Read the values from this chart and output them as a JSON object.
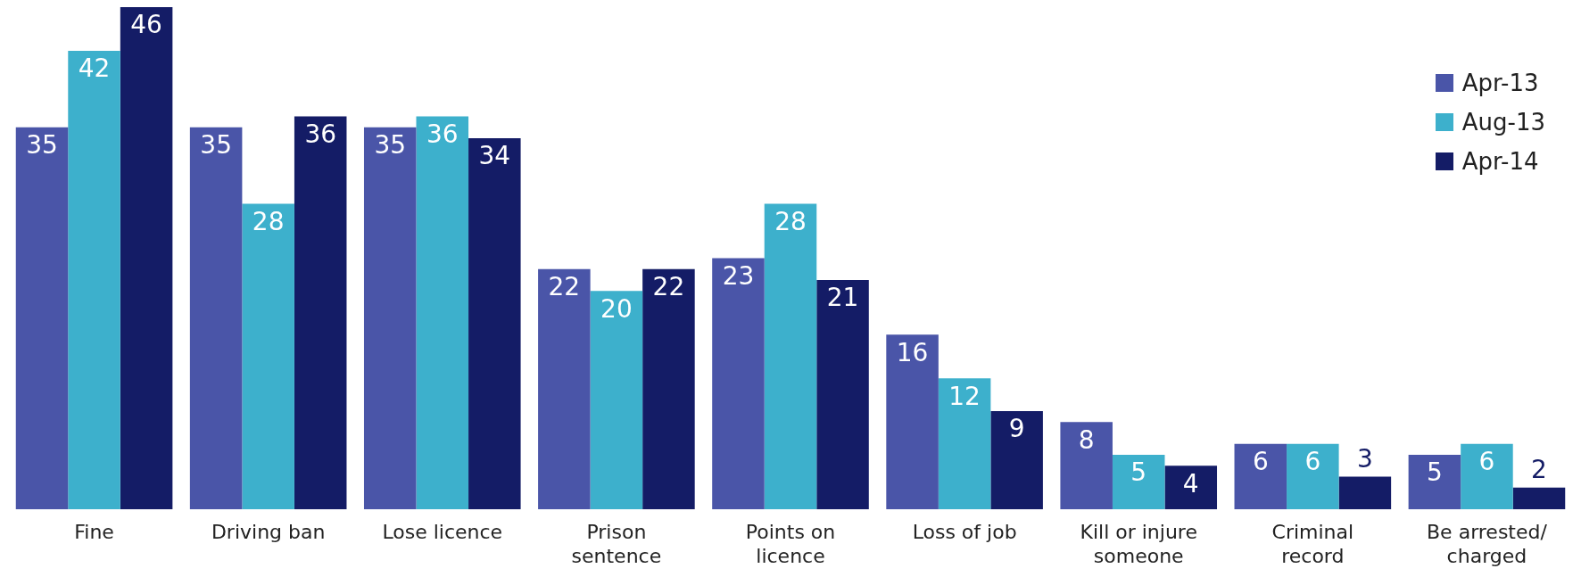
{
  "chart_data": {
    "type": "bar",
    "categories": [
      "Fine",
      "Driving ban",
      "Lose licence",
      "Prison sentence",
      "Points on licence",
      "Loss of job",
      "Kill or injure someone",
      "Criminal record",
      "Be arrested/ charged"
    ],
    "series": [
      {
        "name": "Apr-13",
        "color": "#4a55a8",
        "values": [
          35,
          35,
          35,
          22,
          23,
          16,
          8,
          6,
          5
        ]
      },
      {
        "name": "Aug-13",
        "color": "#3db0cc",
        "values": [
          42,
          28,
          36,
          20,
          28,
          12,
          5,
          6,
          6
        ]
      },
      {
        "name": "Apr-14",
        "color": "#141c66",
        "values": [
          46,
          36,
          34,
          22,
          21,
          9,
          4,
          3,
          2
        ]
      }
    ],
    "data_labels": true,
    "legend": "top right",
    "tick_labels": "x",
    "grid": false
  }
}
